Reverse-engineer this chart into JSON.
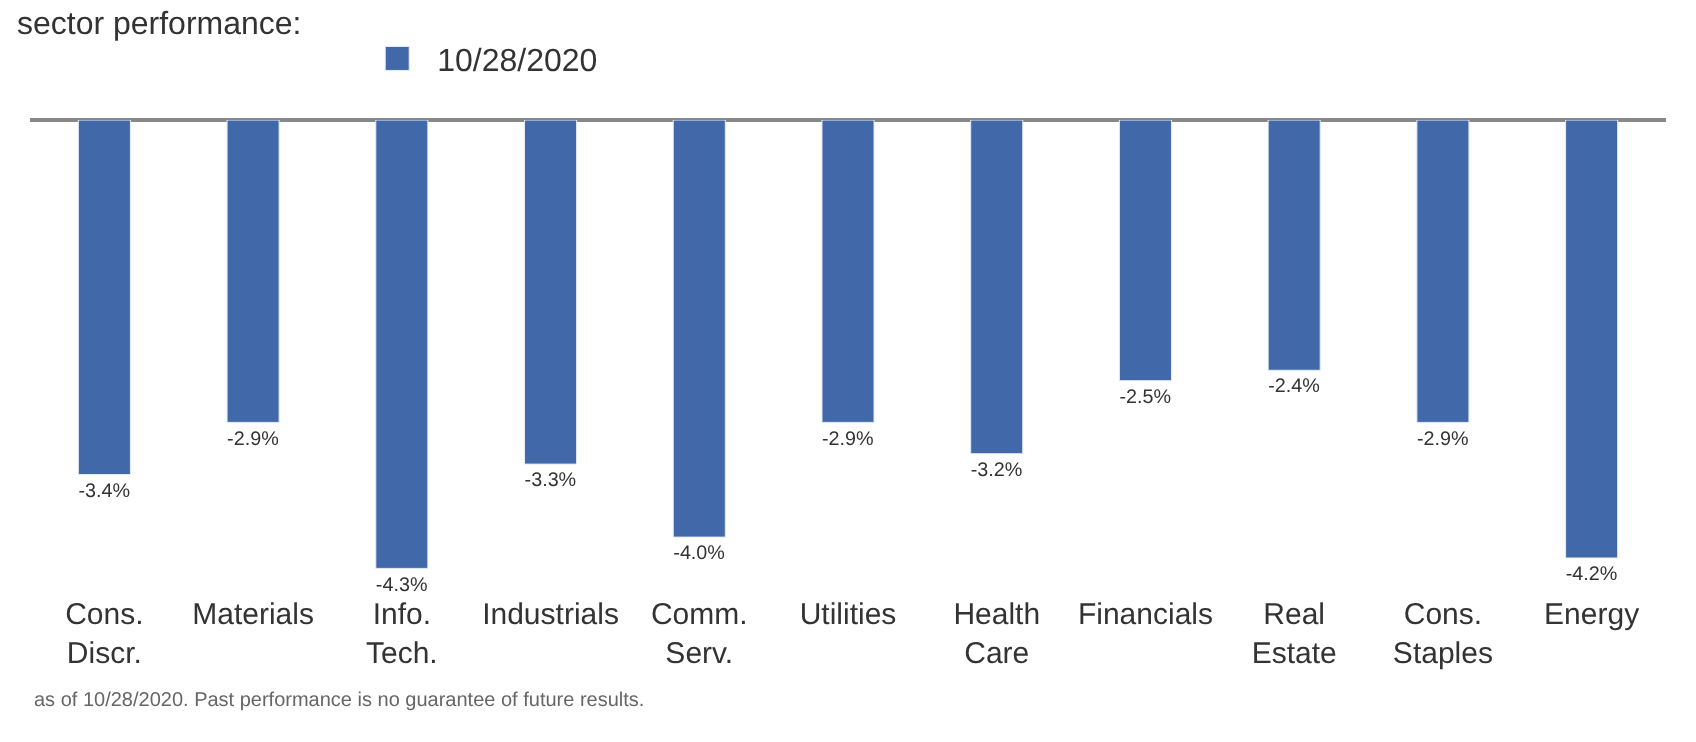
{
  "chart_data": {
    "type": "bar",
    "title": "sector performance:",
    "categories": [
      "Cons. Discr.",
      "Materials",
      "Info. Tech.",
      "Industrials",
      "Comm. Serv.",
      "Utilities",
      "Health Care",
      "Financials",
      "Real Estate",
      "Cons. Staples",
      "Energy"
    ],
    "series": [
      {
        "name": "10/28/2020",
        "color": "#4169aa",
        "values": [
          -3.4,
          -2.9,
          -4.3,
          -3.3,
          -4.0,
          -2.9,
          -3.2,
          -2.5,
          -2.4,
          -2.9,
          -4.2
        ],
        "value_labels": [
          "-3.4%",
          "-2.9%",
          "-4.3%",
          "-3.3%",
          "-4.0%",
          "-2.9%",
          "-3.2%",
          "-2.5%",
          "-2.4%",
          "-2.9%",
          "-4.2%"
        ]
      }
    ],
    "legend": "top left",
    "tick_labels": "x",
    "annotations": [
      "as of 10/28/2020. Past performance is no guarantee of future results."
    ]
  }
}
